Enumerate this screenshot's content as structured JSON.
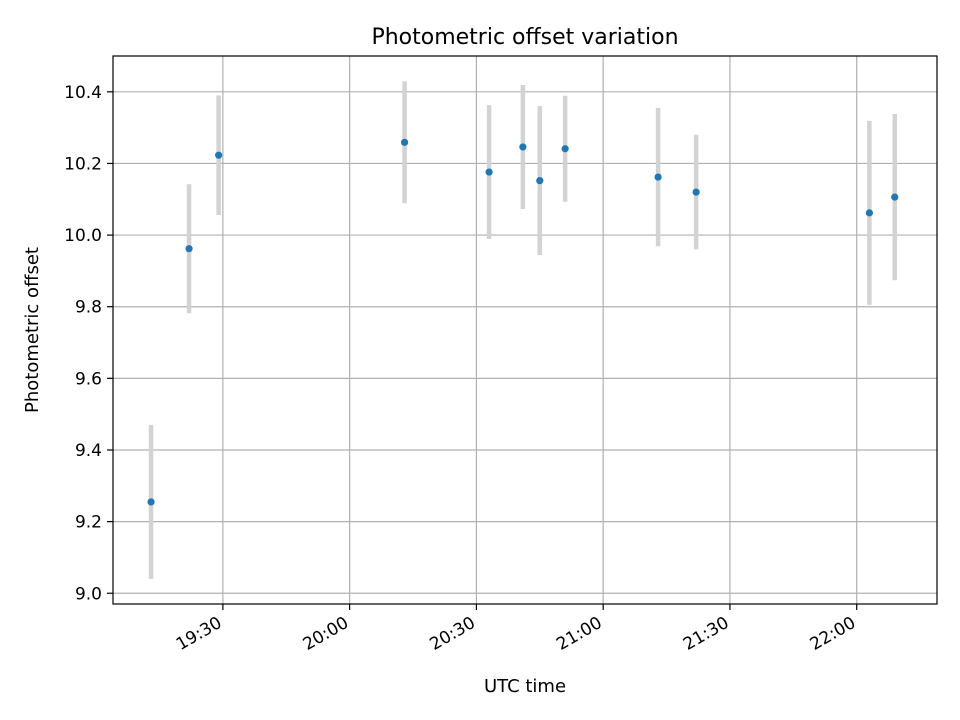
{
  "chart_data": {
    "type": "scatter",
    "title": "Photometric offset variation",
    "xlabel": "UTC time",
    "ylabel": "Photometric offset",
    "x_ticks": [
      "19:30",
      "20:00",
      "20:30",
      "21:00",
      "21:30",
      "22:00"
    ],
    "y_ticks": [
      "9.0",
      "9.2",
      "9.4",
      "9.6",
      "9.8",
      "10.0",
      "10.2",
      "10.4"
    ],
    "xlim": [
      "19:04",
      "22:19"
    ],
    "ylim": [
      8.97,
      10.5
    ],
    "grid": true,
    "colors": {
      "point": "#1f77b4",
      "errorbar": "#d3d3d3",
      "grid": "#b0b0b0"
    },
    "series": [
      {
        "x": [
          "19:13",
          "19:22",
          "19:29",
          "20:13",
          "20:33",
          "20:41",
          "20:45",
          "20:51",
          "21:13",
          "21:22",
          "22:03",
          "22:09"
        ],
        "y": [
          9.255,
          9.962,
          10.223,
          10.259,
          10.176,
          10.246,
          10.152,
          10.241,
          10.162,
          10.12,
          10.062,
          10.106
        ],
        "yerr": [
          0.215,
          0.18,
          0.167,
          0.17,
          0.187,
          0.173,
          0.208,
          0.148,
          0.193,
          0.16,
          0.257,
          0.232
        ]
      }
    ]
  }
}
